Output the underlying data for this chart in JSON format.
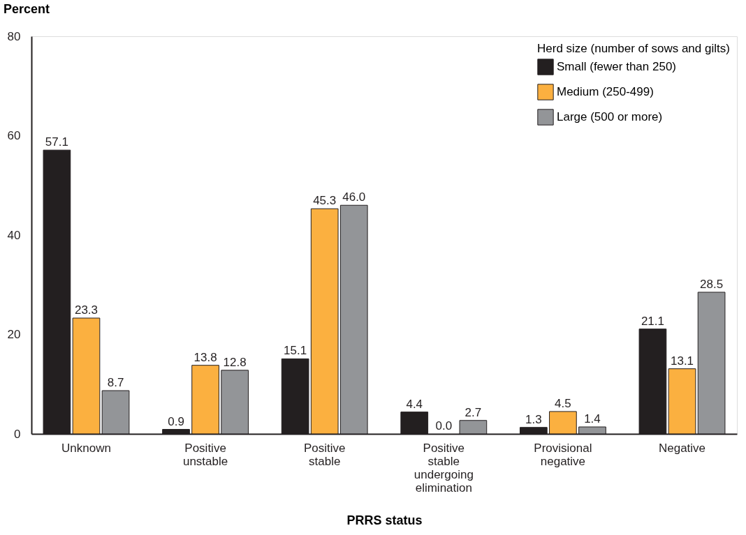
{
  "chart_data": {
    "type": "bar",
    "xlabel": "PRRS status",
    "ylabel": "Percent",
    "legend_title": "Herd size (number of sows and gilts)",
    "categories": [
      "Unknown",
      "Positive unstable",
      "Positive stable",
      "Positive stable undergoing elimination",
      "Provisional negative",
      "Negative"
    ],
    "series": [
      {
        "name": "Small (fewer than 250)",
        "color": "#231f20",
        "values": [
          57.1,
          0.9,
          15.1,
          4.4,
          1.3,
          21.1
        ],
        "value_labels": [
          "57.1",
          "0.9",
          "15.1",
          "4.4",
          "1.3",
          "21.1"
        ]
      },
      {
        "name": "Medium (250-499)",
        "color": "#fbb040",
        "values": [
          23.3,
          13.8,
          45.3,
          0.0,
          4.5,
          13.1
        ],
        "value_labels": [
          "23.3",
          "13.8",
          "45.3",
          "0.0",
          "4.5",
          "13.1"
        ]
      },
      {
        "name": "Large (500 or more)",
        "color": "#939598",
        "values": [
          8.7,
          12.8,
          46.0,
          2.7,
          1.4,
          28.5
        ],
        "value_labels": [
          "8.7",
          "12.8",
          "46.0",
          "2.7",
          "1.4",
          "28.5"
        ]
      }
    ],
    "ylim": [
      0,
      80
    ],
    "yticks": [
      0,
      20,
      40,
      60,
      80
    ],
    "grid": false,
    "legend": "top right"
  }
}
